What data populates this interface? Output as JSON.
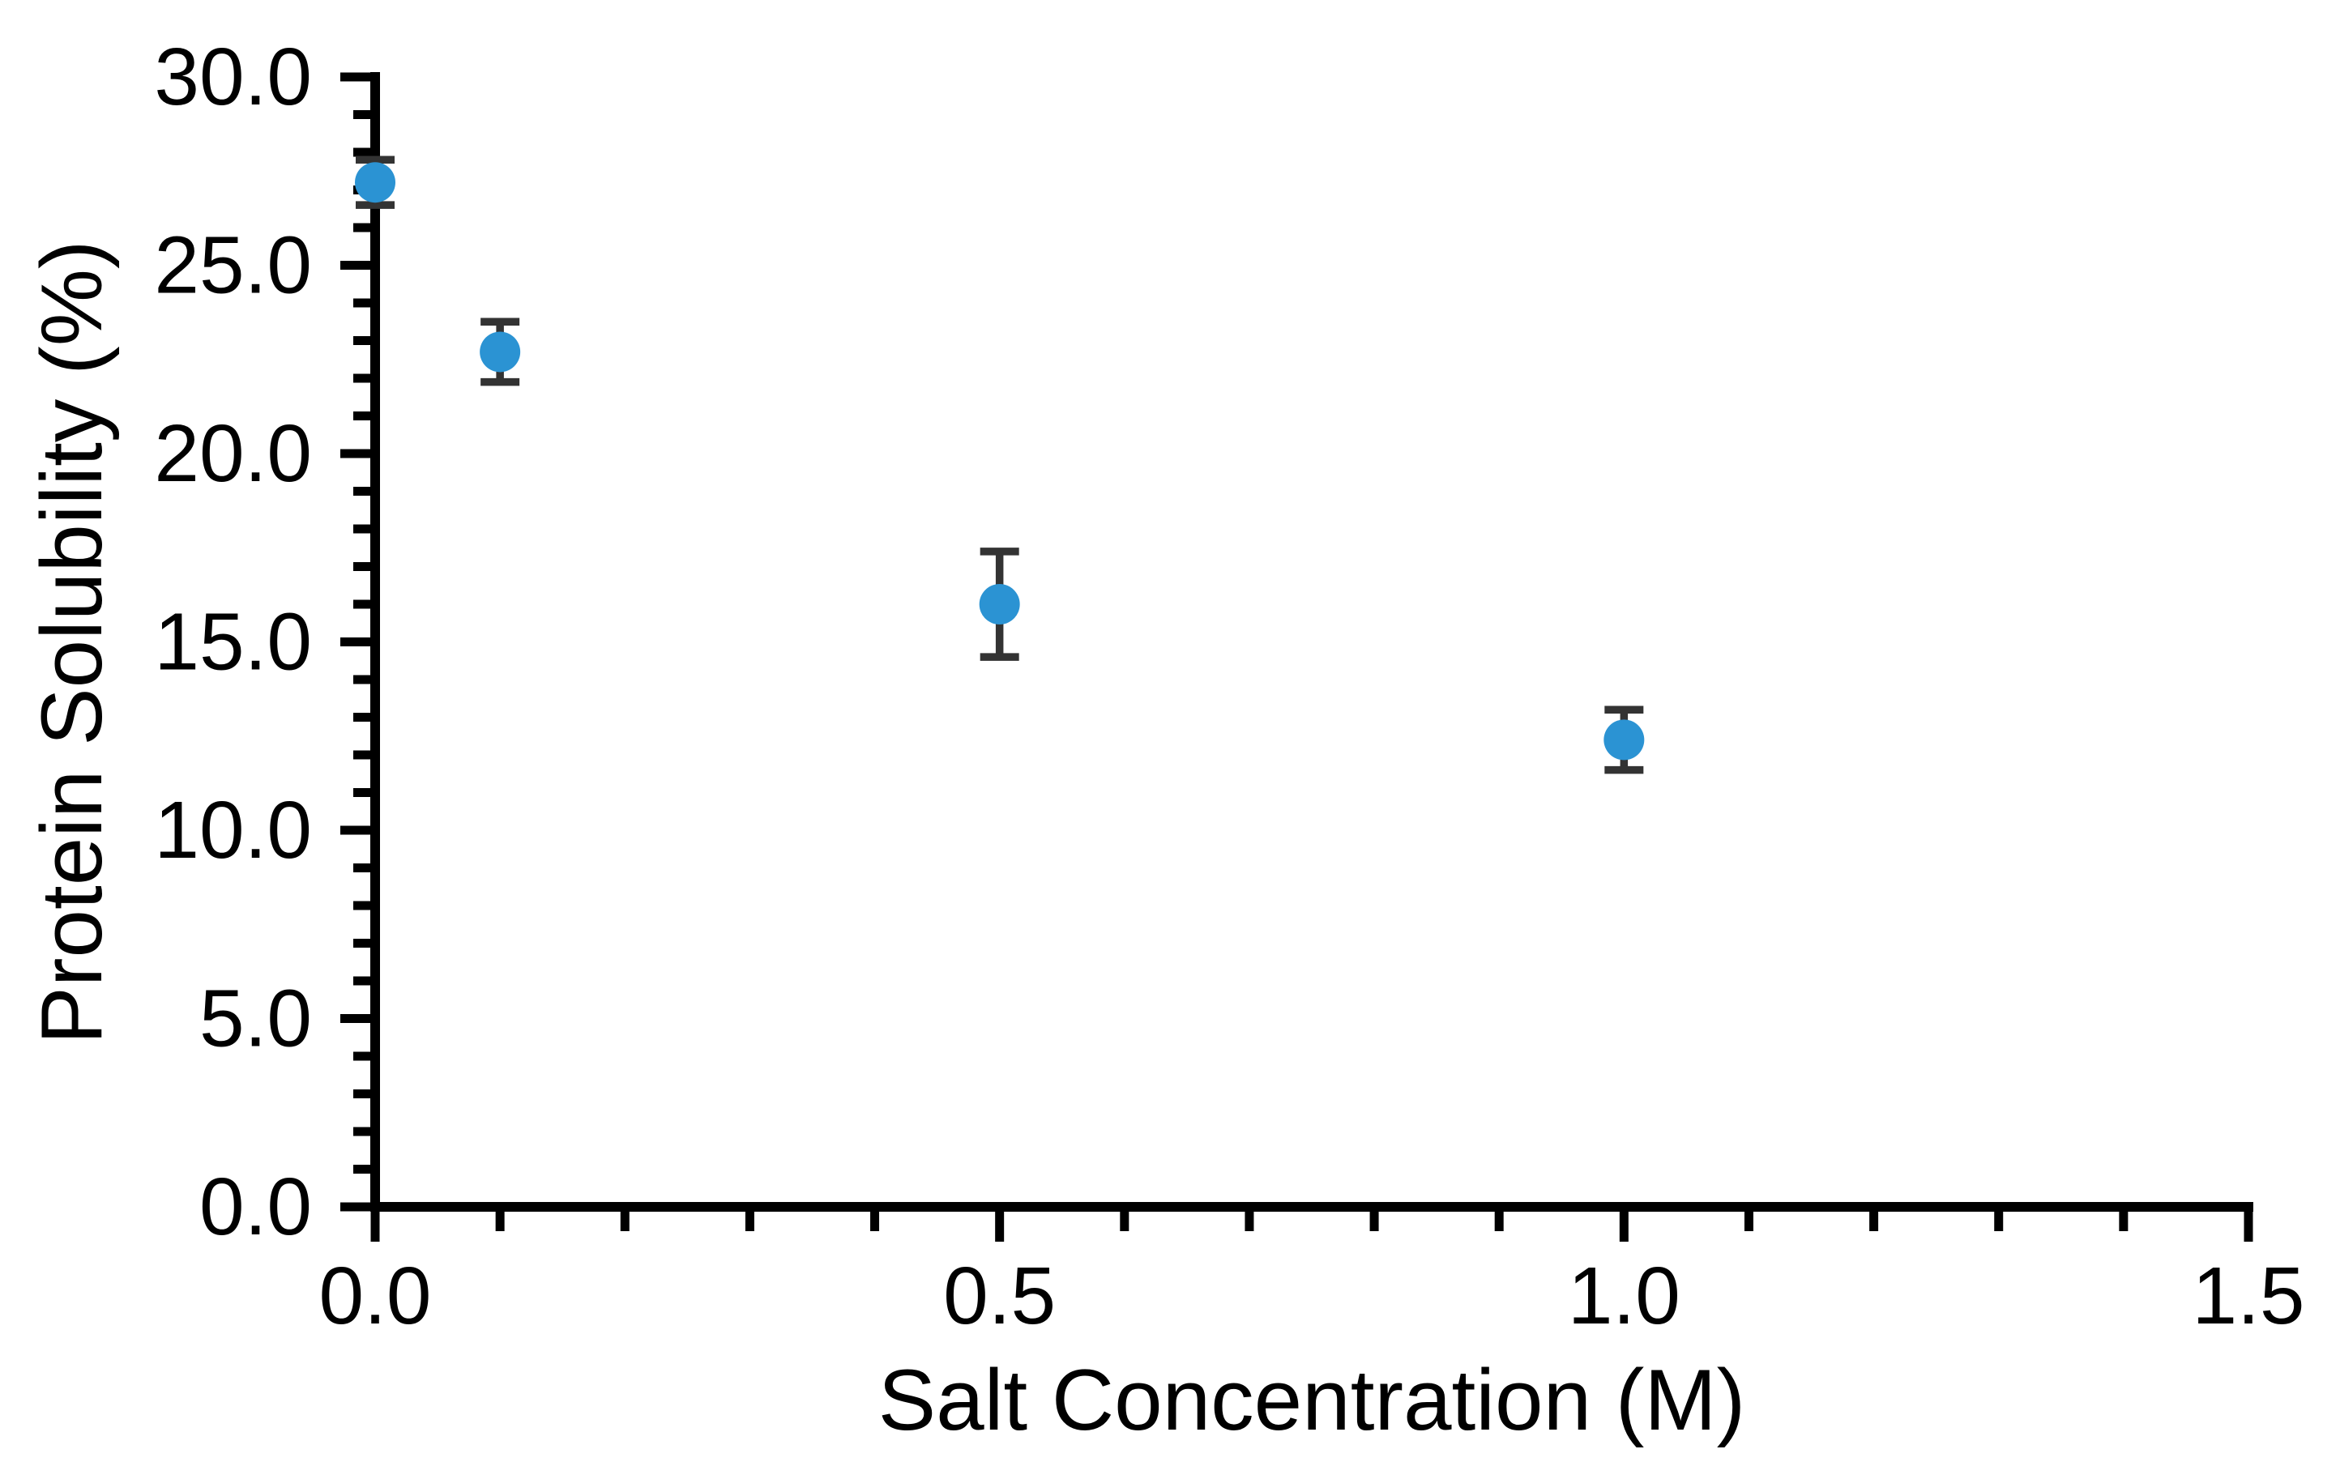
{
  "chart_data": {
    "type": "scatter",
    "title": "",
    "xlabel": "Salt Concentration (M)",
    "ylabel": "Protein Solubility (%)",
    "xlim": [
      0,
      1.5
    ],
    "ylim": [
      0,
      30
    ],
    "x_major_step": 0.5,
    "x_minor_step": 0.1,
    "y_major_step": 5,
    "y_minor_step": 1,
    "x_tick_labels": [
      "0.0",
      "0.5",
      "1.0",
      "1.5"
    ],
    "y_tick_labels": [
      "0.0",
      "5.0",
      "10.0",
      "15.0",
      "20.0",
      "25.0",
      "30.0"
    ],
    "grid": false,
    "legend": false,
    "background_color": "#ffffff",
    "axis_color": "#000000",
    "series": [
      {
        "name": "Protein solubility",
        "marker": "circle",
        "marker_color": "#2B93D3",
        "error_bar_color": "#333333",
        "points": [
          {
            "x": 0.0,
            "y": 27.2,
            "err": 0.6
          },
          {
            "x": 0.1,
            "y": 22.7,
            "err": 0.8
          },
          {
            "x": 0.5,
            "y": 16.0,
            "err": 1.4
          },
          {
            "x": 1.0,
            "y": 12.4,
            "err": 0.8
          }
        ]
      }
    ]
  }
}
